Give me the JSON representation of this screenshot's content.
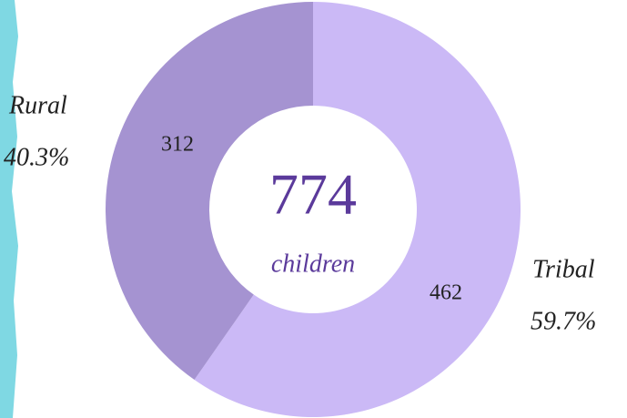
{
  "chart_data": {
    "type": "donut",
    "categories": [
      "Tribal",
      "Rural"
    ],
    "values": [
      462,
      312
    ],
    "colors": [
      "#cbb9f6",
      "#a593d1"
    ],
    "percents": [
      59.7,
      40.3
    ],
    "percent_labels": [
      "59.7%",
      "40.3%"
    ],
    "center_value": 774,
    "center_label": "children"
  }
}
